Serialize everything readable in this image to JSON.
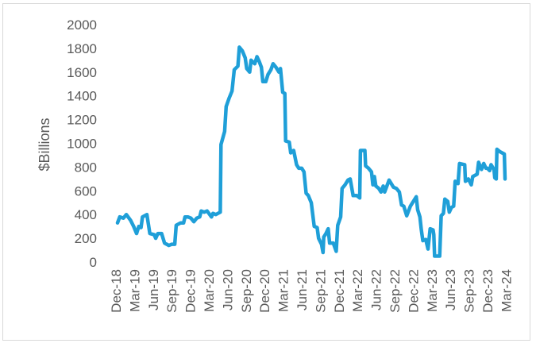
{
  "chart_data": {
    "type": "line",
    "title": "",
    "xlabel": "",
    "ylabel": "$Billions",
    "ylim": [
      0,
      2000
    ],
    "y_ticks": [
      "0",
      "200",
      "400",
      "600",
      "800",
      "1000",
      "1200",
      "1400",
      "1600",
      "1800",
      "2000"
    ],
    "x_tick_labels": [
      "Dec-18",
      "Mar-19",
      "Jun-19",
      "Sep-19",
      "Dec-19",
      "Mar-20",
      "Jun-20",
      "Sep-20",
      "Dec-20",
      "Mar-21",
      "Jun-21",
      "Sep-21",
      "Dec-21",
      "Mar-22",
      "Jun-22",
      "Sep-22",
      "Dec-22",
      "Mar-23",
      "Jun-23",
      "Sep-23",
      "Dec-23",
      "Mar-24"
    ],
    "grid": false,
    "legend": "none",
    "line_color": "#1f9fd8",
    "series": [
      {
        "values": [
          [
            0,
            330
          ],
          [
            0.15,
            380
          ],
          [
            0.4,
            370
          ],
          [
            0.6,
            400
          ],
          [
            0.9,
            350
          ],
          [
            1.1,
            300
          ],
          [
            1.3,
            240
          ],
          [
            1.45,
            300
          ],
          [
            1.6,
            290
          ],
          [
            1.7,
            380
          ],
          [
            2.0,
            400
          ],
          [
            2.2,
            240
          ],
          [
            2.5,
            230
          ],
          [
            2.6,
            200
          ],
          [
            2.75,
            240
          ],
          [
            3.0,
            240
          ],
          [
            3.2,
            160
          ],
          [
            3.5,
            140
          ],
          [
            3.7,
            150
          ],
          [
            3.9,
            150
          ],
          [
            4.0,
            310
          ],
          [
            4.3,
            330
          ],
          [
            4.5,
            330
          ],
          [
            4.6,
            380
          ],
          [
            4.8,
            380
          ],
          [
            5.0,
            370
          ],
          [
            5.2,
            340
          ],
          [
            5.4,
            370
          ],
          [
            5.6,
            380
          ],
          [
            5.7,
            430
          ],
          [
            5.9,
            420
          ],
          [
            6.1,
            430
          ],
          [
            6.4,
            380
          ],
          [
            6.5,
            410
          ],
          [
            6.7,
            400
          ],
          [
            7.0,
            420
          ],
          [
            7.05,
            990
          ],
          [
            7.3,
            1100
          ],
          [
            7.4,
            1310
          ],
          [
            7.6,
            1380
          ],
          [
            7.8,
            1440
          ],
          [
            7.95,
            1620
          ],
          [
            8.2,
            1650
          ],
          [
            8.3,
            1810
          ],
          [
            8.5,
            1780
          ],
          [
            8.7,
            1720
          ],
          [
            8.8,
            1630
          ],
          [
            9.0,
            1600
          ],
          [
            9.1,
            1700
          ],
          [
            9.35,
            1670
          ],
          [
            9.5,
            1730
          ],
          [
            9.65,
            1690
          ],
          [
            9.8,
            1640
          ],
          [
            9.9,
            1520
          ],
          [
            10.1,
            1520
          ],
          [
            10.25,
            1580
          ],
          [
            10.45,
            1620
          ],
          [
            10.6,
            1670
          ],
          [
            10.8,
            1640
          ],
          [
            11.0,
            1600
          ],
          [
            11.1,
            1630
          ],
          [
            11.25,
            1430
          ],
          [
            11.4,
            1420
          ],
          [
            11.45,
            1020
          ],
          [
            11.7,
            1010
          ],
          [
            11.8,
            920
          ],
          [
            12.0,
            940
          ],
          [
            12.2,
            820
          ],
          [
            12.35,
            790
          ],
          [
            12.55,
            790
          ],
          [
            12.7,
            760
          ],
          [
            12.85,
            580
          ],
          [
            13.0,
            560
          ],
          [
            13.2,
            500
          ],
          [
            13.4,
            300
          ],
          [
            13.6,
            290
          ],
          [
            13.7,
            200
          ],
          [
            13.9,
            150
          ],
          [
            14.0,
            80
          ],
          [
            14.05,
            210
          ],
          [
            14.2,
            240
          ],
          [
            14.35,
            280
          ],
          [
            14.45,
            160
          ],
          [
            14.7,
            160
          ],
          [
            14.9,
            90
          ],
          [
            15.0,
            310
          ],
          [
            15.2,
            380
          ],
          [
            15.3,
            620
          ],
          [
            15.5,
            650
          ],
          [
            15.7,
            690
          ],
          [
            15.85,
            700
          ],
          [
            16.05,
            560
          ],
          [
            16.3,
            560
          ],
          [
            16.5,
            540
          ],
          [
            16.55,
            940
          ],
          [
            16.85,
            940
          ],
          [
            16.9,
            810
          ],
          [
            17.1,
            790
          ],
          [
            17.3,
            760
          ],
          [
            17.4,
            650
          ],
          [
            17.5,
            720
          ],
          [
            17.6,
            640
          ],
          [
            17.8,
            620
          ],
          [
            17.95,
            590
          ],
          [
            18.1,
            640
          ],
          [
            18.2,
            590
          ],
          [
            18.35,
            640
          ],
          [
            18.5,
            690
          ],
          [
            18.7,
            650
          ],
          [
            18.8,
            630
          ],
          [
            19.0,
            620
          ],
          [
            19.2,
            590
          ],
          [
            19.35,
            480
          ],
          [
            19.5,
            470
          ],
          [
            19.7,
            390
          ],
          [
            19.95,
            470
          ],
          [
            20.1,
            500
          ],
          [
            20.35,
            550
          ],
          [
            20.45,
            440
          ],
          [
            20.6,
            380
          ],
          [
            20.7,
            270
          ],
          [
            20.8,
            180
          ],
          [
            21.0,
            190
          ],
          [
            21.15,
            110
          ],
          [
            21.3,
            280
          ],
          [
            21.5,
            270
          ],
          [
            21.55,
            230
          ],
          [
            21.6,
            50
          ],
          [
            21.95,
            50
          ],
          [
            22.05,
            390
          ],
          [
            22.2,
            410
          ],
          [
            22.3,
            530
          ],
          [
            22.5,
            510
          ],
          [
            22.6,
            420
          ],
          [
            22.75,
            460
          ],
          [
            22.9,
            470
          ],
          [
            23.0,
            680
          ],
          [
            23.2,
            660
          ],
          [
            23.3,
            830
          ],
          [
            23.65,
            820
          ],
          [
            23.7,
            680
          ],
          [
            23.9,
            700
          ],
          [
            24.1,
            650
          ],
          [
            24.2,
            720
          ],
          [
            24.5,
            740
          ],
          [
            24.6,
            840
          ],
          [
            24.8,
            780
          ],
          [
            24.95,
            830
          ],
          [
            25.1,
            790
          ],
          [
            25.2,
            790
          ],
          [
            25.35,
            770
          ],
          [
            25.45,
            820
          ],
          [
            25.65,
            780
          ],
          [
            25.7,
            710
          ],
          [
            25.8,
            700
          ],
          [
            25.85,
            950
          ],
          [
            26.05,
            930
          ],
          [
            26.2,
            920
          ],
          [
            26.35,
            910
          ],
          [
            26.4,
            700
          ]
        ]
      }
    ]
  }
}
